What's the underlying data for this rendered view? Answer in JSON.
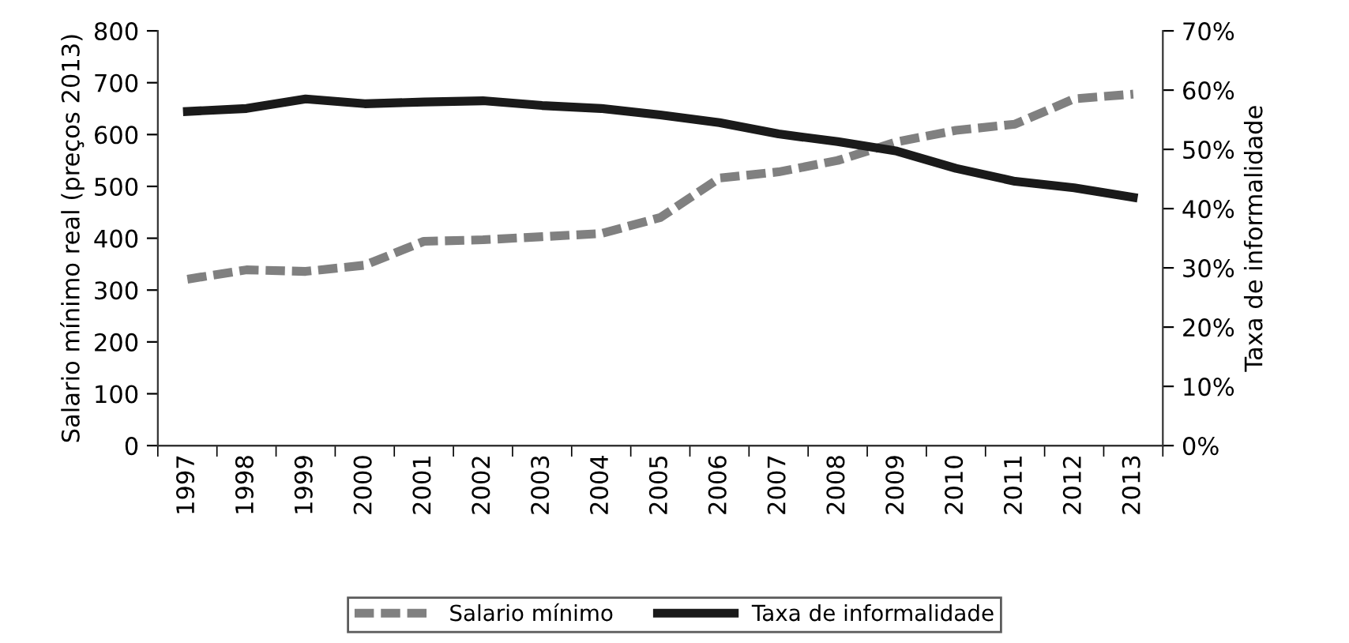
{
  "chart_data": {
    "type": "line",
    "categories": [
      "1997",
      "1998",
      "1999",
      "2000",
      "2001",
      "2002",
      "2003",
      "2004",
      "2005",
      "2006",
      "2007",
      "2008",
      "2009",
      "2010",
      "2011",
      "2012",
      "2013"
    ],
    "series": [
      {
        "name": "Salario mínimo",
        "color": "#808080",
        "line_style": "dashed",
        "values": [
          321,
          339,
          336,
          348,
          394,
          397,
          403,
          409,
          440,
          516,
          528,
          550,
          586,
          608,
          620,
          669,
          678
        ]
      },
      {
        "name": "Taxa de informalidade",
        "color": "#1a1a1a",
        "line_style": "solid",
        "axis": "y2",
        "values": [
          56.4,
          56.9,
          58.5,
          57.7,
          58.0,
          58.2,
          57.4,
          56.9,
          55.8,
          54.5,
          52.6,
          51.3,
          49.7,
          46.8,
          44.6,
          43.5,
          41.9
        ]
      }
    ],
    "ylabel": "Salario mínimo real (preços 2013)",
    "y2label": "Taxa de informalidade",
    "ylim": [
      0,
      800
    ],
    "yticks": [
      0,
      100,
      200,
      300,
      400,
      500,
      600,
      700,
      800
    ],
    "y2lim": [
      0,
      70
    ],
    "y2ticks": [
      {
        "value": 0,
        "label": "0%"
      },
      {
        "value": 10,
        "label": "10%"
      },
      {
        "value": 20,
        "label": "20%"
      },
      {
        "value": 30,
        "label": "30%"
      },
      {
        "value": 40,
        "label": "40%"
      },
      {
        "value": 50,
        "label": "50%"
      },
      {
        "value": 60,
        "label": "60%"
      },
      {
        "value": 70,
        "label": "70%"
      }
    ],
    "grid": false,
    "legend": "bottom",
    "marker": "none"
  }
}
